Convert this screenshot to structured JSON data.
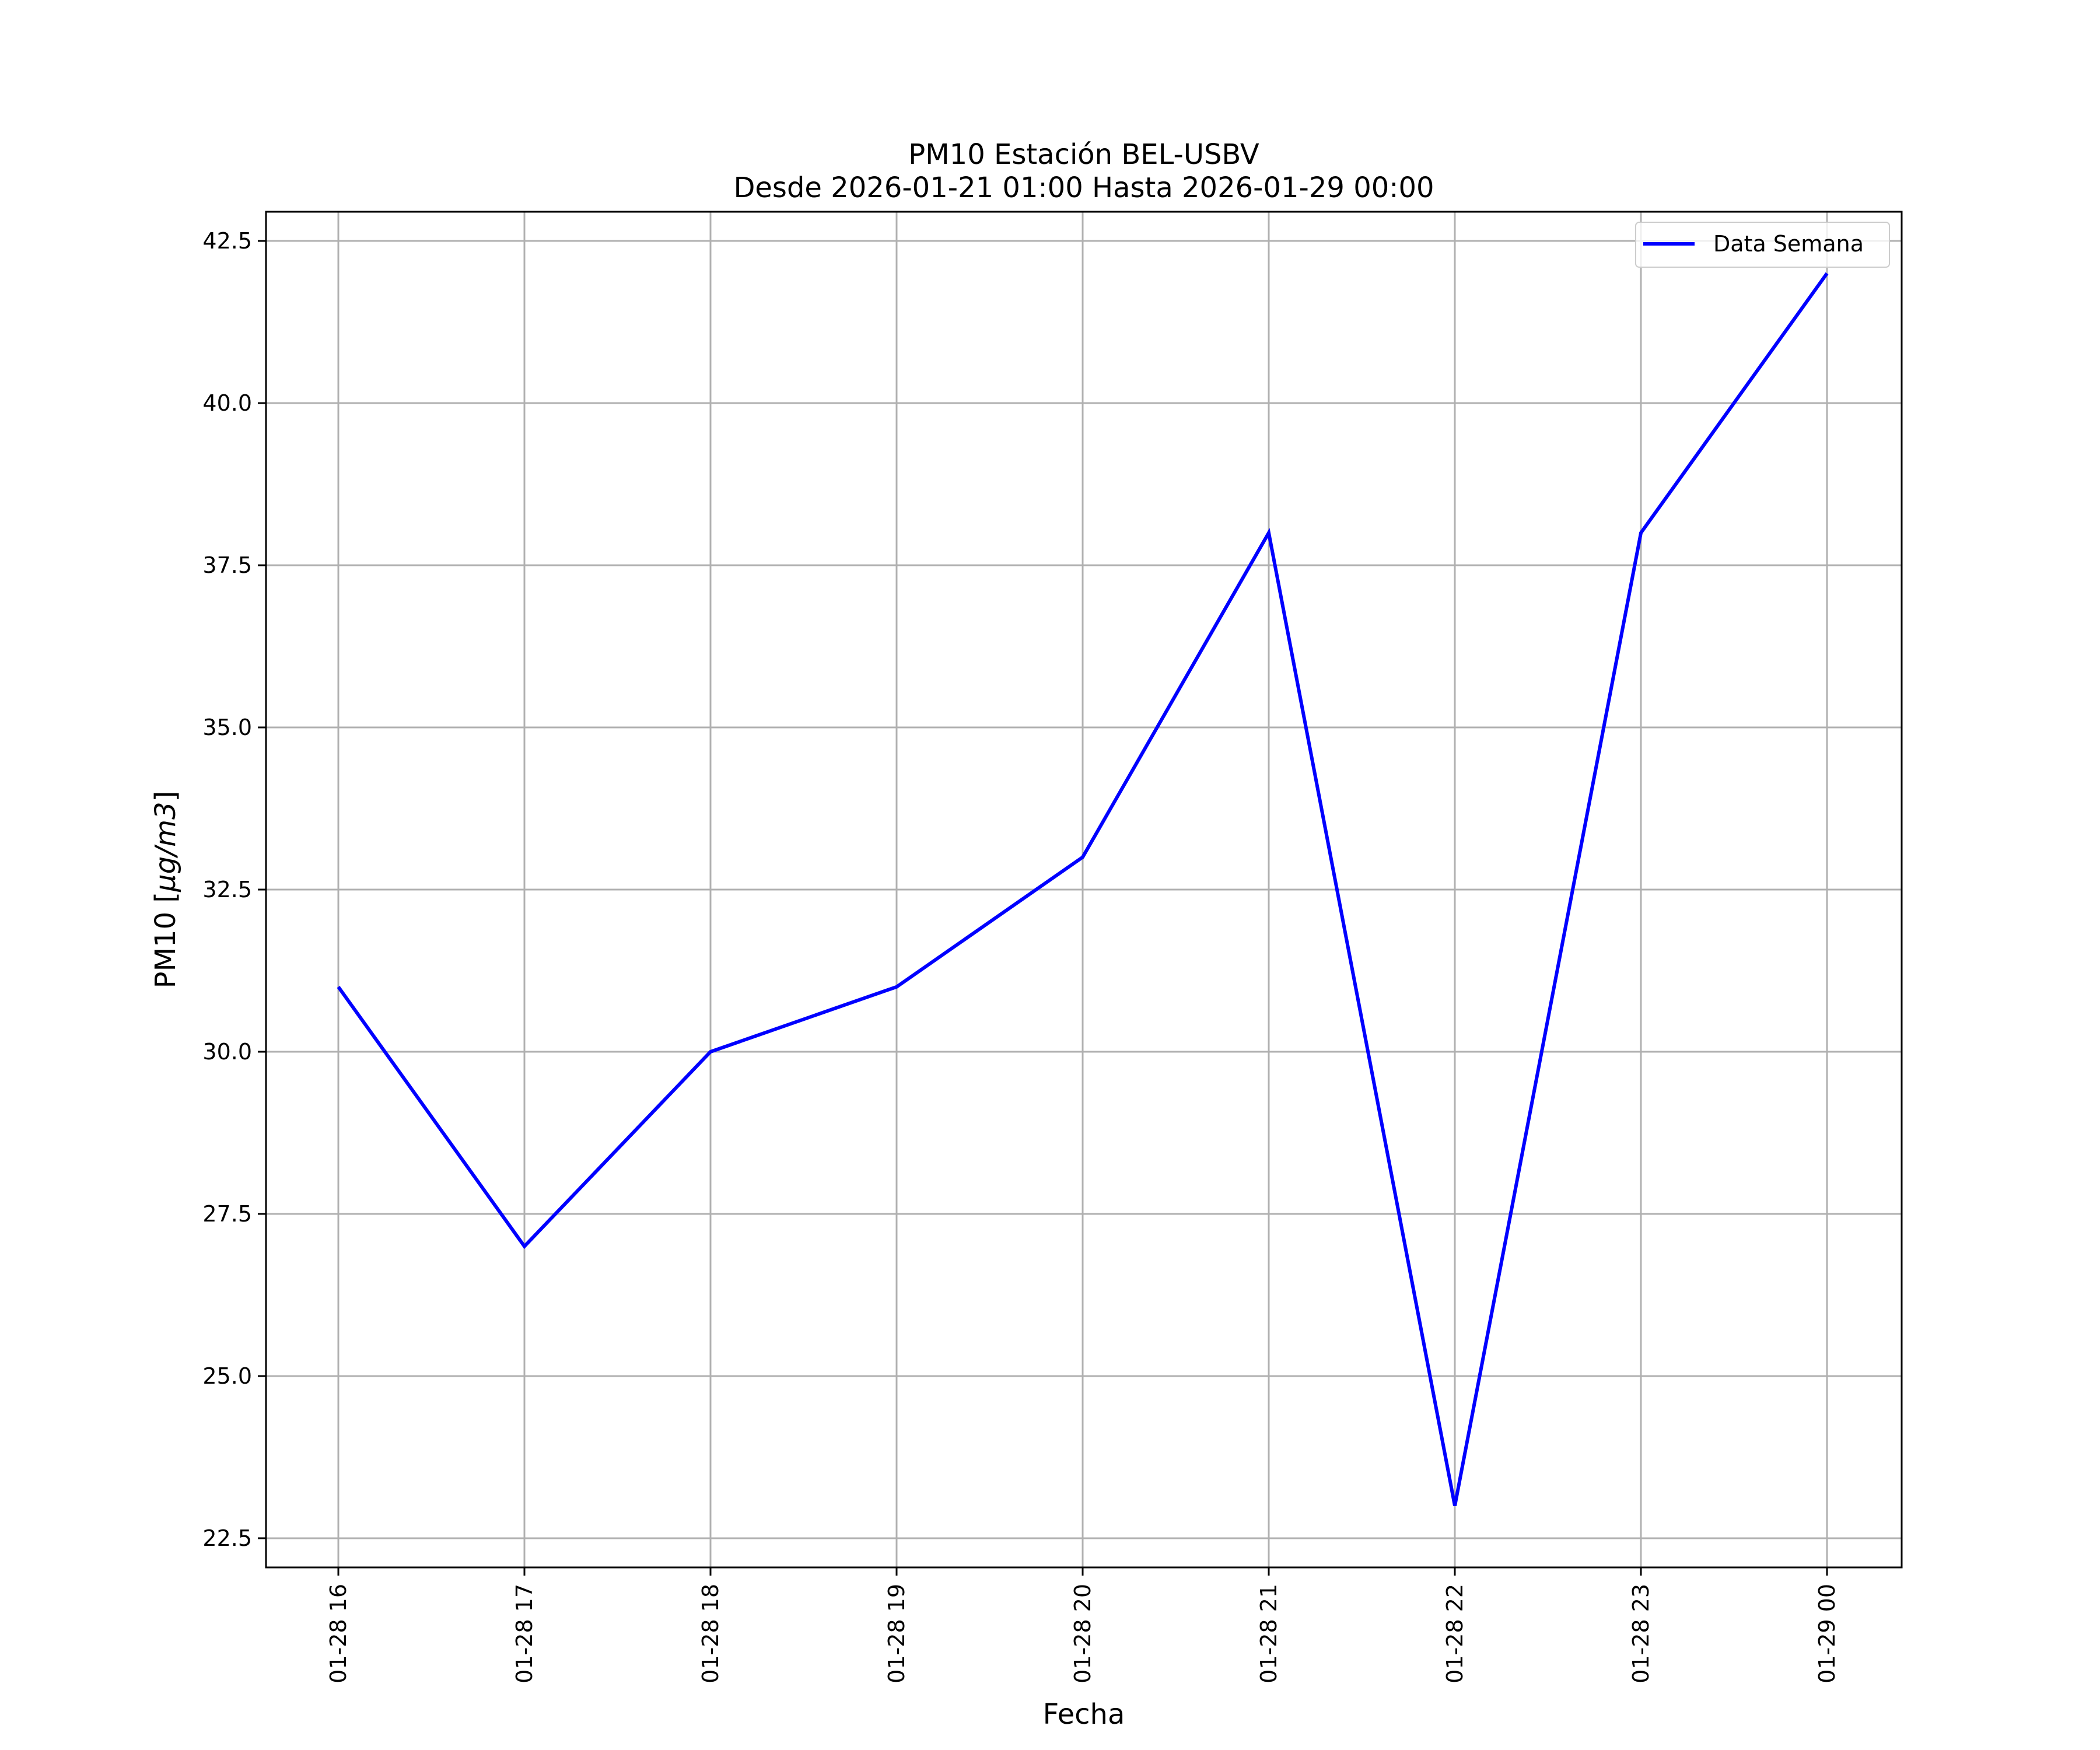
{
  "chart_data": {
    "type": "line",
    "title_line1": "PM10 Estación BEL-USBV",
    "title_line2": "Desde 2026-01-21 01:00 Hasta 2026-01-29 00:00",
    "xlabel": "Fecha",
    "ylabel_prefix": "PM10 [",
    "ylabel_unit": "μg/m3",
    "ylabel_suffix": "]",
    "x": [
      "01-28 16",
      "01-28 17",
      "01-28 18",
      "01-28 19",
      "01-28 20",
      "01-28 21",
      "01-28 22",
      "01-28 23",
      "01-29 00"
    ],
    "series": [
      {
        "name": "Data Semana",
        "color": "#0000ff",
        "values": [
          31,
          27,
          30,
          31,
          33,
          38,
          23,
          38,
          42
        ]
      }
    ],
    "ylim": [
      22.05,
      42.95
    ],
    "yticks": [
      22.5,
      25.0,
      27.5,
      30.0,
      32.5,
      35.0,
      37.5,
      40.0,
      42.5
    ],
    "ytick_labels": [
      "22.5",
      "25.0",
      "27.5",
      "30.0",
      "32.5",
      "35.0",
      "37.5",
      "40.0",
      "42.5"
    ],
    "grid": true,
    "legend_position": "top-right",
    "grid_color": "#b0b0b0",
    "axis_color": "#000000"
  }
}
